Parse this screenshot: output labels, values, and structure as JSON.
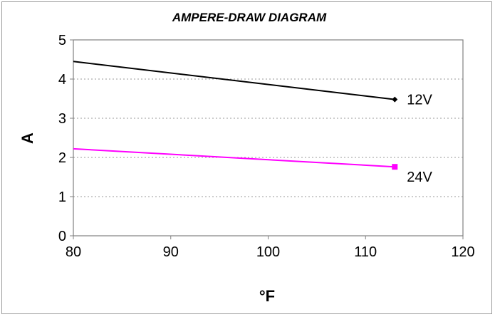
{
  "chart_data": {
    "type": "line",
    "title": "AMPERE-DRAW DIAGRAM",
    "xlabel": "°F",
    "ylabel": "A",
    "xlim": [
      80,
      120
    ],
    "ylim": [
      0,
      5
    ],
    "xticks": [
      "80",
      "90",
      "100",
      "110",
      "120"
    ],
    "yticks": [
      "0",
      "1",
      "2",
      "3",
      "4",
      "5"
    ],
    "grid": "horizontal-dotted",
    "legend": "none",
    "series": [
      {
        "name": "12V",
        "color": "#000000",
        "marker": "diamond",
        "x": [
          80,
          113
        ],
        "y": [
          4.45,
          3.48
        ]
      },
      {
        "name": "24V",
        "color": "#ff00ff",
        "marker": "square",
        "x": [
          80,
          113
        ],
        "y": [
          2.22,
          1.76
        ]
      }
    ]
  }
}
